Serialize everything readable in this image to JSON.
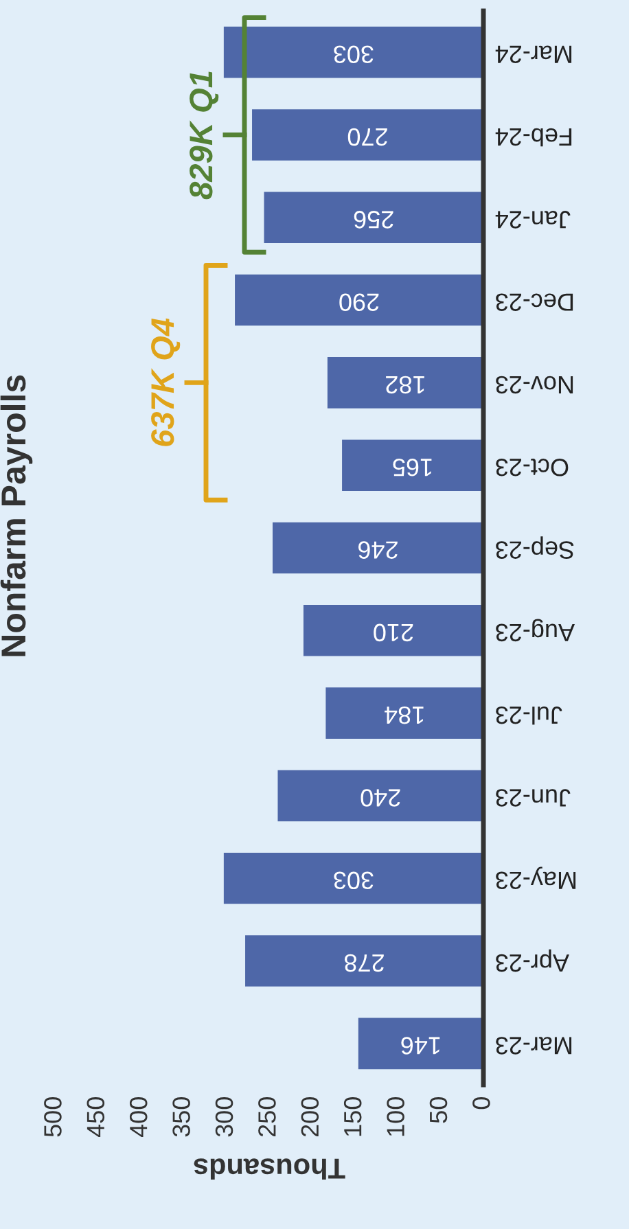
{
  "chart_data": {
    "type": "bar",
    "orientation": "horizontal",
    "title": "Nonfarm Payrolls",
    "xlabel": "Thousands",
    "categories": [
      "Mar-24",
      "Feb-24",
      "Jan-24",
      "Dec-23",
      "Nov-23",
      "Oct-23",
      "Sep-23",
      "Aug-23",
      "Jul-23",
      "Jun-23",
      "May-23",
      "Apr-23",
      "Mar-23"
    ],
    "values": [
      303,
      270,
      256,
      290,
      182,
      165,
      246,
      210,
      184,
      240,
      303,
      278,
      146
    ],
    "color": "#4e67a8",
    "data_labels": true,
    "xlim": [
      500,
      0
    ],
    "xticks": [
      0,
      50,
      100,
      150,
      200,
      250,
      300,
      350,
      400,
      450,
      500
    ],
    "grid": false,
    "annotations": [
      "829K Q1",
      "637K Q4"
    ]
  }
}
